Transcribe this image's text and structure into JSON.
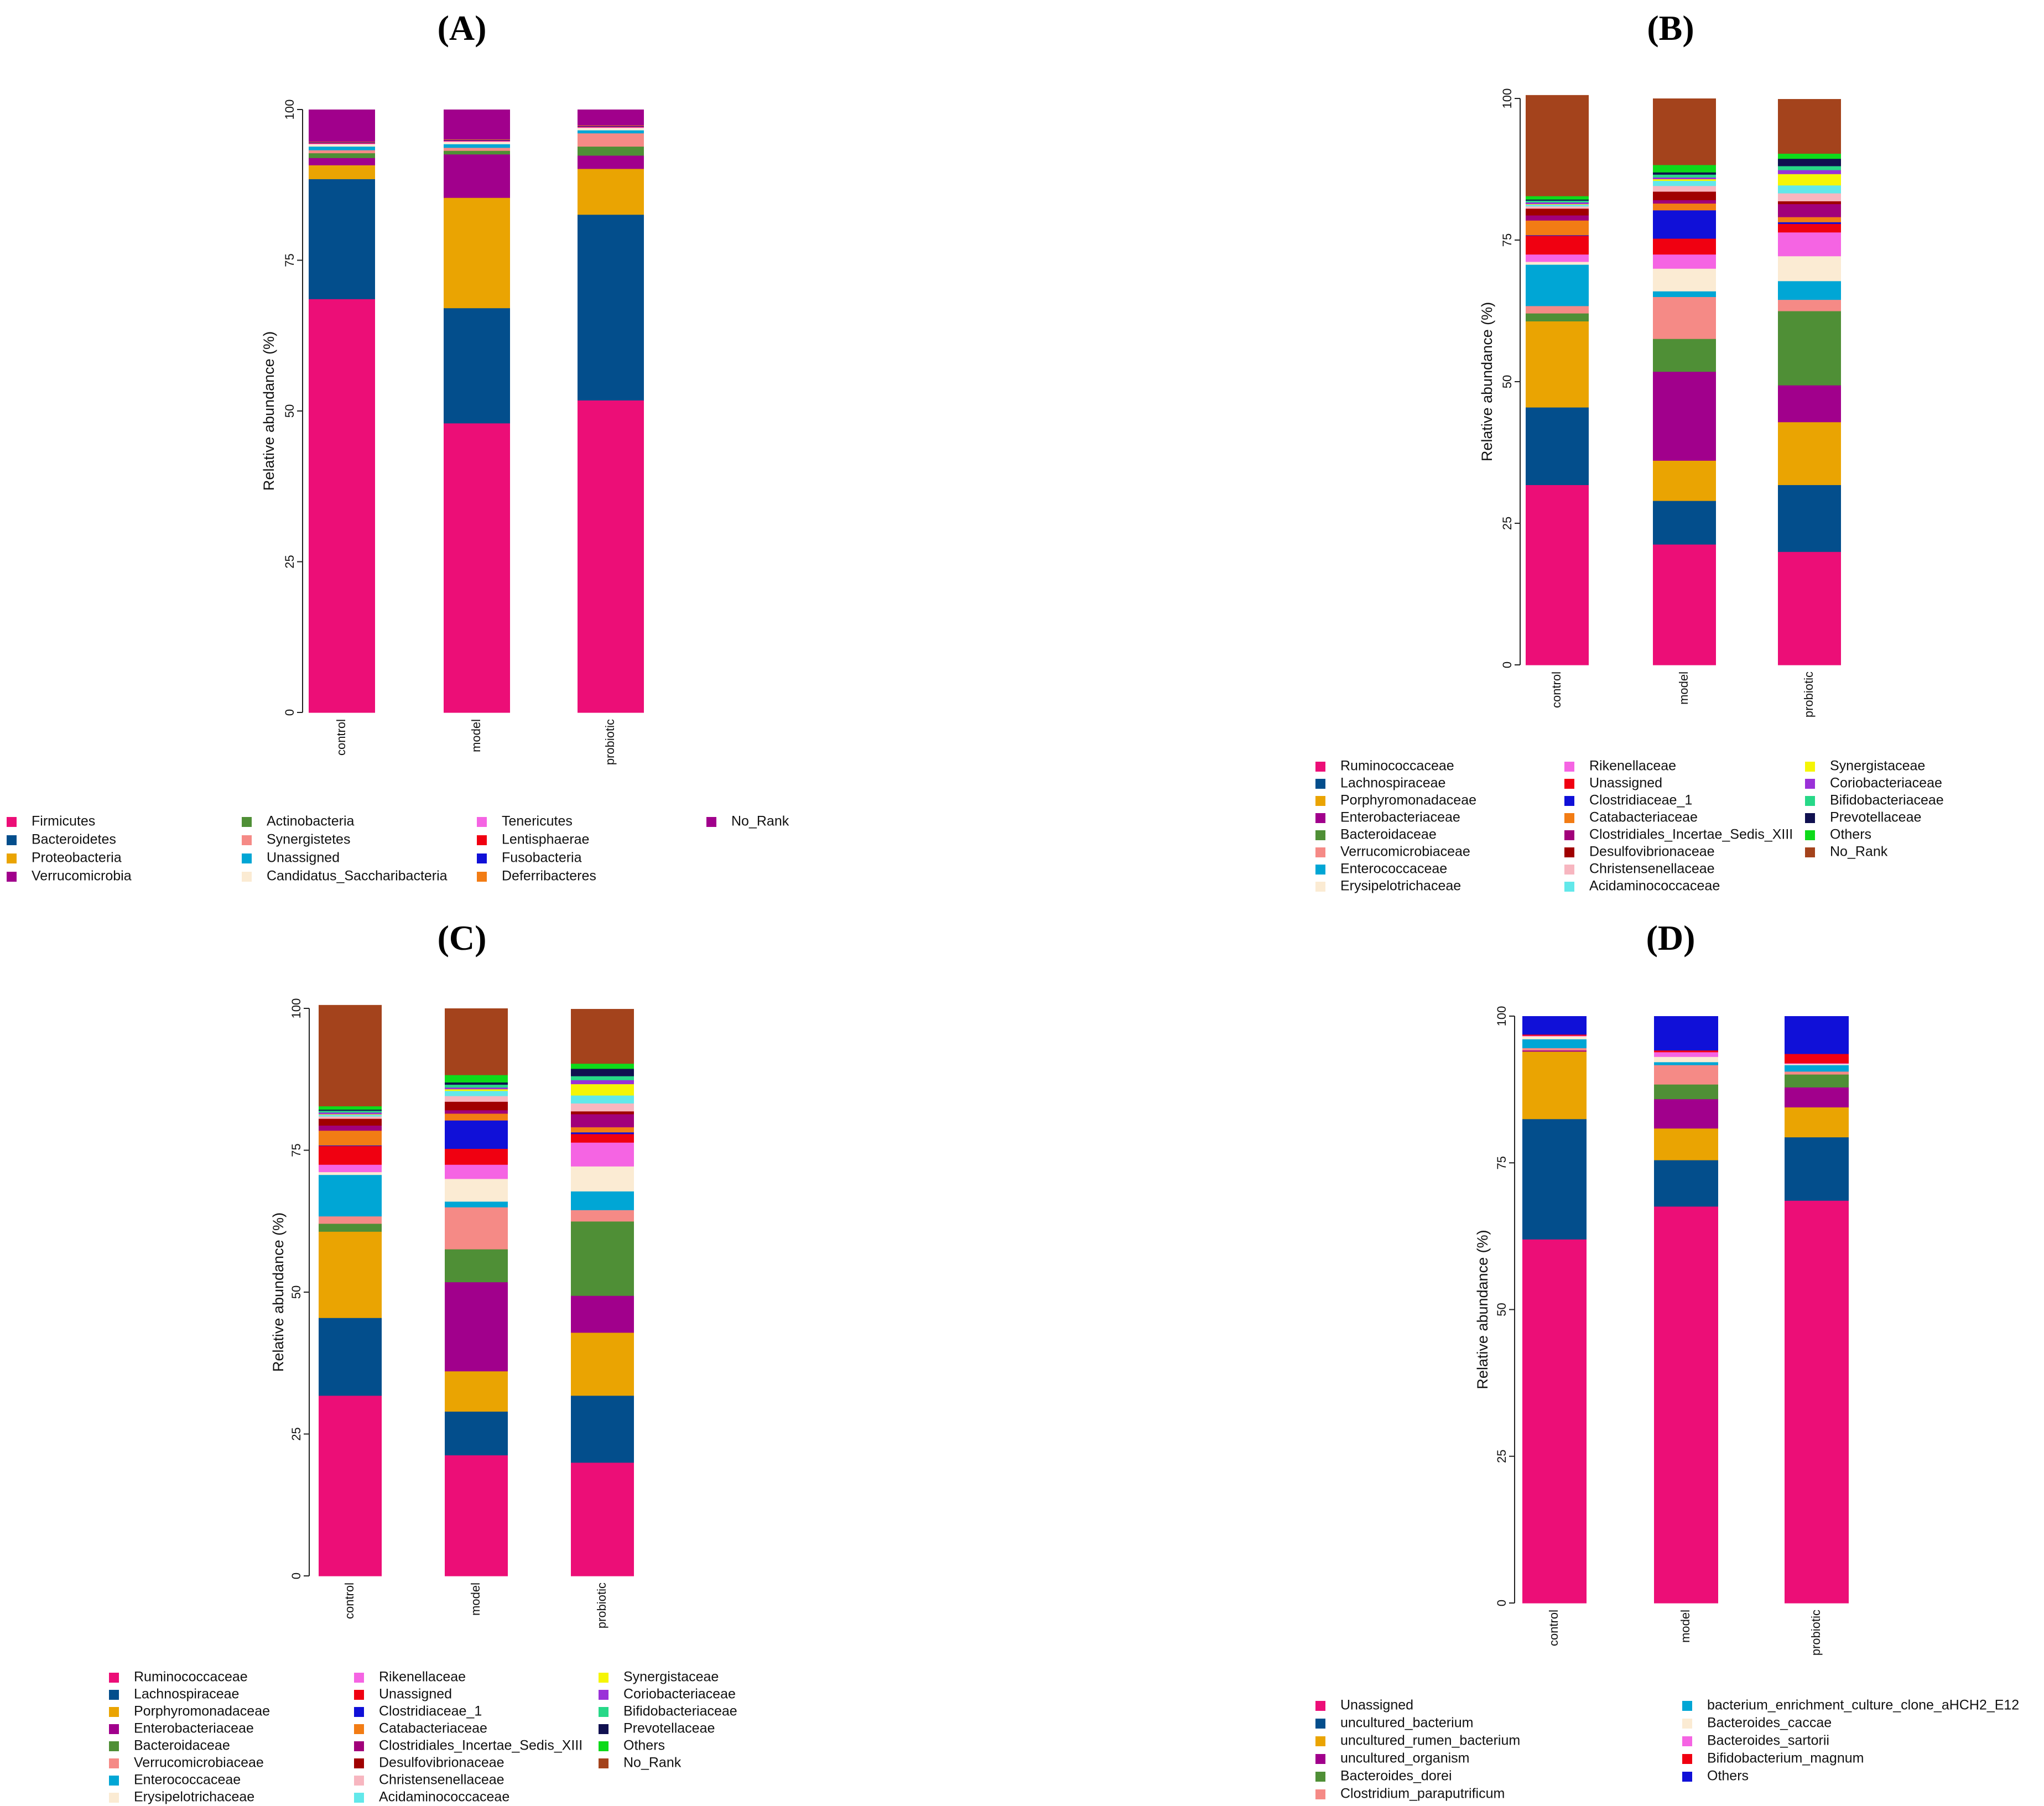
{
  "chart_data": [
    {
      "panel": "(A)",
      "type": "bar",
      "stacked": true,
      "ylabel": "Relative abundance (%)",
      "ylim": [
        0,
        100
      ],
      "yticks": [
        "0",
        "25",
        "50",
        "75",
        "100"
      ],
      "categories": [
        "control",
        "model",
        "probiotic"
      ],
      "series": [
        {
          "name": "Firmicutes",
          "color": "#EC0E77",
          "values": [
            68.6,
            48.0,
            51.8
          ]
        },
        {
          "name": "Bacteroidetes",
          "color": "#034E8C",
          "values": [
            19.9,
            19.1,
            30.8
          ]
        },
        {
          "name": "Proteobacteria",
          "color": "#EAA402",
          "values": [
            2.3,
            18.3,
            7.6
          ]
        },
        {
          "name": "Verrucomicrobia",
          "color": "#A1008C",
          "values": [
            1.2,
            7.2,
            2.2
          ]
        },
        {
          "name": "Actinobacteria",
          "color": "#4F8F36",
          "values": [
            0.8,
            0.6,
            1.5
          ]
        },
        {
          "name": "Synergistetes",
          "color": "#F58A86",
          "values": [
            0.5,
            0.5,
            2.2
          ]
        },
        {
          "name": "Unassigned",
          "color": "#00A6D5",
          "values": [
            0.6,
            0.6,
            0.5
          ]
        },
        {
          "name": "Candidatus_Saccharibacteria",
          "color": "#FBEBD3",
          "values": [
            0.4,
            0.4,
            0.4
          ]
        },
        {
          "name": "Tenericutes",
          "color": "#F564E3",
          "values": [
            0.1,
            0.1,
            0.1
          ]
        },
        {
          "name": "Lentisphaerae",
          "color": "#F00011",
          "values": [
            0.1,
            0.1,
            0.1
          ]
        },
        {
          "name": "Fusobacteria",
          "color": "#1010D8",
          "values": [
            0.1,
            0.1,
            0.1
          ]
        },
        {
          "name": "Deferribacteres",
          "color": "#F27C14",
          "values": [
            0.1,
            0.1,
            0.1
          ]
        },
        {
          "name": "No_Rank",
          "color": "#A1008C",
          "values": [
            5.3,
            4.9,
            2.6
          ]
        }
      ],
      "legend_columns": [
        [
          "Firmicutes",
          "Bacteroidetes",
          "Proteobacteria",
          "Verrucomicrobia"
        ],
        [
          "Actinobacteria",
          "Synergistetes",
          "Unassigned",
          "Candidatus_Saccharibacteria"
        ],
        [
          "Tenericutes",
          "Lentisphaerae",
          "Fusobacteria",
          "Deferribacteres"
        ],
        [
          "No_Rank"
        ]
      ]
    },
    {
      "panel": "(B)",
      "type": "bar",
      "stacked": true,
      "ylabel": "Relative abundance (%)",
      "ylim": [
        0,
        100
      ],
      "yticks": [
        "0",
        "25",
        "50",
        "75",
        "100"
      ],
      "categories": [
        "control",
        "model",
        "probiotic"
      ],
      "series": [
        {
          "name": "Ruminococcaceae",
          "color": "#EC0E77",
          "values": [
            31.8,
            21.3,
            20.0
          ]
        },
        {
          "name": "Lachnospiraceae",
          "color": "#034E8C",
          "values": [
            13.7,
            7.7,
            11.8
          ]
        },
        {
          "name": "Porphyromonadaceae",
          "color": "#EAA402",
          "values": [
            15.2,
            7.1,
            11.1
          ]
        },
        {
          "name": "Enterobacteriaceae",
          "color": "#A1008C",
          "values": [
            0.0,
            15.7,
            6.5
          ]
        },
        {
          "name": "Bacteroidaceae",
          "color": "#4F8F36",
          "values": [
            1.4,
            5.8,
            13.1
          ]
        },
        {
          "name": "Verrucomicrobiaceae",
          "color": "#F58A86",
          "values": [
            1.3,
            7.4,
            2.0
          ]
        },
        {
          "name": "Enterococcaceae",
          "color": "#00A6D5",
          "values": [
            7.3,
            1.0,
            3.3
          ]
        },
        {
          "name": "Erysipelotrichaceae",
          "color": "#FBEBD3",
          "values": [
            0.5,
            4.0,
            4.4
          ]
        },
        {
          "name": "Rikenellaceae",
          "color": "#F564E3",
          "values": [
            1.3,
            2.5,
            4.2
          ]
        },
        {
          "name": "Unassigned",
          "color": "#F00011",
          "values": [
            3.3,
            2.8,
            1.5
          ]
        },
        {
          "name": "Clostridiaceae_1",
          "color": "#1010D8",
          "values": [
            0.1,
            5.0,
            0.3
          ]
        },
        {
          "name": "Catabacteriaceae",
          "color": "#F27C14",
          "values": [
            2.6,
            1.2,
            0.9
          ]
        },
        {
          "name": "Clostridiales_Incertae_Sedis_XIII",
          "color": "#A1007A",
          "values": [
            0.9,
            0.6,
            2.3
          ]
        },
        {
          "name": "Desulfovibrionaceae",
          "color": "#A00000",
          "values": [
            1.2,
            1.5,
            0.5
          ]
        },
        {
          "name": "Christensenellaceae",
          "color": "#F7B6C0",
          "values": [
            0.4,
            1.0,
            1.4
          ]
        },
        {
          "name": "Acidaminococcaceae",
          "color": "#62E8EA",
          "values": [
            0.3,
            0.9,
            1.4
          ]
        },
        {
          "name": "Synergistaceae",
          "color": "#F5F505",
          "values": [
            0.1,
            0.3,
            2.0
          ]
        },
        {
          "name": "Coriobacteriaceae",
          "color": "#9A31D8",
          "values": [
            0.3,
            0.3,
            0.7
          ]
        },
        {
          "name": "Bifidobacteriaceae",
          "color": "#27D888",
          "values": [
            0.3,
            0.5,
            0.7
          ]
        },
        {
          "name": "Prevotellaceae",
          "color": "#101050",
          "values": [
            0.2,
            0.4,
            1.3
          ]
        },
        {
          "name": "Others",
          "color": "#0EDA1A",
          "values": [
            0.6,
            1.3,
            0.9
          ]
        },
        {
          "name": "No_Rank",
          "color": "#A4431C",
          "values": [
            17.8,
            11.7,
            9.6
          ]
        }
      ],
      "legend_columns": [
        [
          "Ruminococcaceae",
          "Lachnospiraceae",
          "Porphyromonadaceae",
          "Enterobacteriaceae",
          "Bacteroidaceae",
          "Verrucomicrobiaceae",
          "Enterococcaceae",
          "Erysipelotrichaceae"
        ],
        [
          "Rikenellaceae",
          "Unassigned",
          "Clostridiaceae_1",
          "Catabacteriaceae",
          "Clostridiales_Incertae_Sedis_XIII",
          "Desulfovibrionaceae",
          "Christensenellaceae",
          "Acidaminococcaceae"
        ],
        [
          "Synergistaceae",
          "Coriobacteriaceae",
          "Bifidobacteriaceae",
          "Prevotellaceae",
          "Others",
          "No_Rank"
        ]
      ]
    },
    {
      "panel": "(C)",
      "type": "bar",
      "stacked": true,
      "ylabel": "Relative abundance (%)",
      "ylim": [
        0,
        100
      ],
      "yticks": [
        "0",
        "25",
        "50",
        "75",
        "100"
      ],
      "categories": [
        "control",
        "model",
        "probiotic"
      ],
      "series": [
        {
          "name": "Ruminococcaceae",
          "color": "#EC0E77",
          "values": [
            31.8,
            21.3,
            20.0
          ]
        },
        {
          "name": "Lachnospiraceae",
          "color": "#034E8C",
          "values": [
            13.7,
            7.7,
            11.8
          ]
        },
        {
          "name": "Porphyromonadaceae",
          "color": "#EAA402",
          "values": [
            15.2,
            7.1,
            11.1
          ]
        },
        {
          "name": "Enterobacteriaceae",
          "color": "#A1008C",
          "values": [
            0.0,
            15.7,
            6.5
          ]
        },
        {
          "name": "Bacteroidaceae",
          "color": "#4F8F36",
          "values": [
            1.4,
            5.8,
            13.1
          ]
        },
        {
          "name": "Verrucomicrobiaceae",
          "color": "#F58A86",
          "values": [
            1.3,
            7.4,
            2.0
          ]
        },
        {
          "name": "Enterococcaceae",
          "color": "#00A6D5",
          "values": [
            7.3,
            1.0,
            3.3
          ]
        },
        {
          "name": "Erysipelotrichaceae",
          "color": "#FBEBD3",
          "values": [
            0.5,
            4.0,
            4.4
          ]
        },
        {
          "name": "Rikenellaceae",
          "color": "#F564E3",
          "values": [
            1.3,
            2.5,
            4.2
          ]
        },
        {
          "name": "Unassigned",
          "color": "#F00011",
          "values": [
            3.3,
            2.8,
            1.5
          ]
        },
        {
          "name": "Clostridiaceae_1",
          "color": "#1010D8",
          "values": [
            0.1,
            5.0,
            0.3
          ]
        },
        {
          "name": "Catabacteriaceae",
          "color": "#F27C14",
          "values": [
            2.6,
            1.2,
            0.9
          ]
        },
        {
          "name": "Clostridiales_Incertae_Sedis_XIII",
          "color": "#A1007A",
          "values": [
            0.9,
            0.6,
            2.3
          ]
        },
        {
          "name": "Desulfovibrionaceae",
          "color": "#A00000",
          "values": [
            1.2,
            1.5,
            0.5
          ]
        },
        {
          "name": "Christensenellaceae",
          "color": "#F7B6C0",
          "values": [
            0.4,
            1.0,
            1.4
          ]
        },
        {
          "name": "Acidaminococcaceae",
          "color": "#62E8EA",
          "values": [
            0.3,
            0.9,
            1.4
          ]
        },
        {
          "name": "Synergistaceae",
          "color": "#F5F505",
          "values": [
            0.1,
            0.3,
            2.0
          ]
        },
        {
          "name": "Coriobacteriaceae",
          "color": "#9A31D8",
          "values": [
            0.3,
            0.3,
            0.7
          ]
        },
        {
          "name": "Bifidobacteriaceae",
          "color": "#27D888",
          "values": [
            0.3,
            0.5,
            0.7
          ]
        },
        {
          "name": "Prevotellaceae",
          "color": "#101050",
          "values": [
            0.2,
            0.4,
            1.3
          ]
        },
        {
          "name": "Others",
          "color": "#0EDA1A",
          "values": [
            0.6,
            1.3,
            0.9
          ]
        },
        {
          "name": "No_Rank",
          "color": "#A4431C",
          "values": [
            17.8,
            11.7,
            9.6
          ]
        }
      ],
      "legend_columns": [
        [
          "Ruminococcaceae",
          "Lachnospiraceae",
          "Porphyromonadaceae",
          "Enterobacteriaceae",
          "Bacteroidaceae",
          "Verrucomicrobiaceae",
          "Enterococcaceae",
          "Erysipelotrichaceae"
        ],
        [
          "Rikenellaceae",
          "Unassigned",
          "Clostridiaceae_1",
          "Catabacteriaceae",
          "Clostridiales_Incertae_Sedis_XIII",
          "Desulfovibrionaceae",
          "Christensenellaceae",
          "Acidaminococcaceae"
        ],
        [
          "Synergistaceae",
          "Coriobacteriaceae",
          "Bifidobacteriaceae",
          "Prevotellaceae",
          "Others",
          "No_Rank"
        ]
      ]
    },
    {
      "panel": "(D)",
      "type": "bar",
      "stacked": true,
      "ylabel": "Relative abundance (%)",
      "ylim": [
        0,
        100
      ],
      "yticks": [
        "0",
        "25",
        "50",
        "75",
        "100"
      ],
      "categories": [
        "control",
        "model",
        "probiotic"
      ],
      "series": [
        {
          "name": "Unassigned",
          "color": "#EC0E77",
          "values": [
            62.0,
            67.6,
            68.6
          ]
        },
        {
          "name": "uncultured_bacterium",
          "color": "#034E8C",
          "values": [
            20.5,
            7.9,
            10.8
          ]
        },
        {
          "name": "uncultured_rumen_bacterium",
          "color": "#EAA402",
          "values": [
            11.5,
            5.4,
            5.1
          ]
        },
        {
          "name": "uncultured_organism",
          "color": "#A1008C",
          "values": [
            0.2,
            5.0,
            3.4
          ]
        },
        {
          "name": "Bacteroides_dorei",
          "color": "#4F8F36",
          "values": [
            0.0,
            2.5,
            2.2
          ]
        },
        {
          "name": "Clostridium_paraputrificum",
          "color": "#F58A86",
          "values": [
            0.4,
            3.3,
            0.5
          ]
        },
        {
          "name": "bacterium_enrichment_culture_clone_aHCH2_E12",
          "color": "#00A6D5",
          "values": [
            1.5,
            0.5,
            1.1
          ]
        },
        {
          "name": "Bacteroides_caccae",
          "color": "#FBEBD3",
          "values": [
            0.5,
            0.9,
            0.2
          ]
        },
        {
          "name": "Bacteroides_sartorii",
          "color": "#F564E3",
          "values": [
            0.1,
            0.8,
            0.1
          ]
        },
        {
          "name": "Bifidobacterium_magnum",
          "color": "#F00011",
          "values": [
            0.2,
            0.3,
            1.6
          ]
        },
        {
          "name": "Others",
          "color": "#1010D8",
          "values": [
            3.1,
            5.8,
            6.4
          ]
        }
      ],
      "legend_columns": [
        [
          "Unassigned",
          "uncultured_bacterium",
          "uncultured_rumen_bacterium",
          "uncultured_organism",
          "Bacteroides_dorei",
          "Clostridium_paraputrificum"
        ],
        [
          "bacterium_enrichment_culture_clone_aHCH2_E12",
          "Bacteroides_caccae",
          "Bacteroides_sartorii",
          "Bifidobacterium_magnum",
          "Others"
        ]
      ]
    }
  ]
}
